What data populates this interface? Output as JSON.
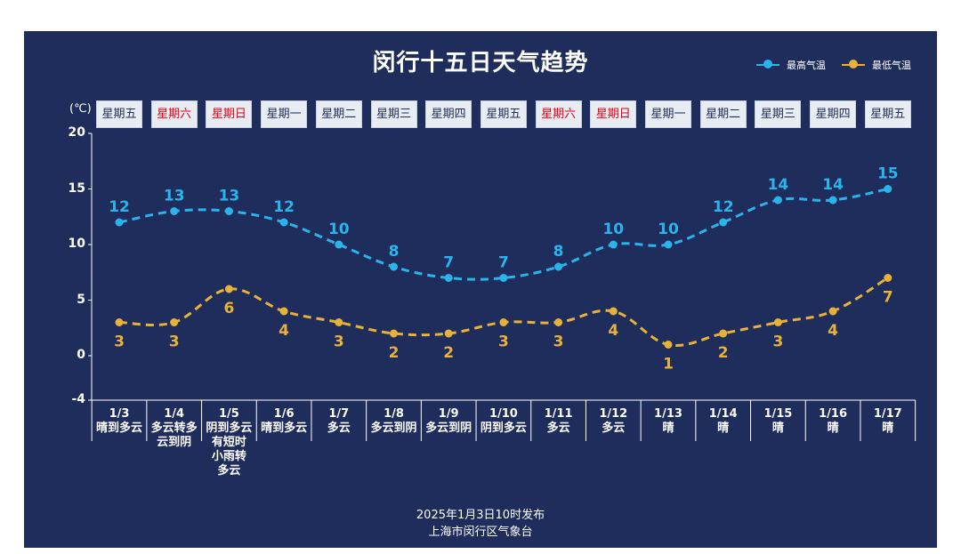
{
  "chart_data": {
    "type": "line",
    "title": "闵行十五日天气趋势",
    "unit_label": "(℃)",
    "ylim": [
      -4,
      20
    ],
    "yticks": [
      "20",
      "15",
      "10",
      "5",
      "0",
      "-4"
    ],
    "categories": [
      "1/3",
      "1/4",
      "1/5",
      "1/6",
      "1/7",
      "1/8",
      "1/9",
      "1/10",
      "1/11",
      "1/12",
      "1/13",
      "1/14",
      "1/15",
      "1/16",
      "1/17"
    ],
    "weekdays": [
      "星期五",
      "星期六",
      "星期日",
      "星期一",
      "星期二",
      "星期三",
      "星期四",
      "星期五",
      "星期六",
      "星期日",
      "星期一",
      "星期二",
      "星期三",
      "星期四",
      "星期五"
    ],
    "weekend_flags": [
      false,
      true,
      true,
      false,
      false,
      false,
      false,
      false,
      true,
      true,
      false,
      false,
      false,
      false,
      false
    ],
    "descriptions": [
      "晴到多云",
      "多云转多\n云到阴",
      "阴到多云\n有短时\n小雨转\n多云",
      "晴到多云",
      "多云",
      "多云到阴",
      "多云到阴",
      "阴到多云",
      "多云",
      "多云",
      "晴",
      "晴",
      "晴",
      "晴",
      "晴"
    ],
    "series": [
      {
        "name": "最高气温",
        "color": "#2bb4ea",
        "values": [
          12,
          13,
          13,
          12,
          10,
          8,
          7,
          7,
          8,
          10,
          10,
          12,
          14,
          14,
          15
        ]
      },
      {
        "name": "最低气温",
        "color": "#e7b23a",
        "values": [
          3,
          3,
          6,
          4,
          3,
          2,
          2,
          3,
          3,
          4,
          1,
          2,
          3,
          4,
          7
        ]
      }
    ],
    "grid": false,
    "legend": "top-right"
  },
  "footer": {
    "line1": "2025年1月3日10时发布",
    "line2": "上海市闵行区气象台"
  }
}
